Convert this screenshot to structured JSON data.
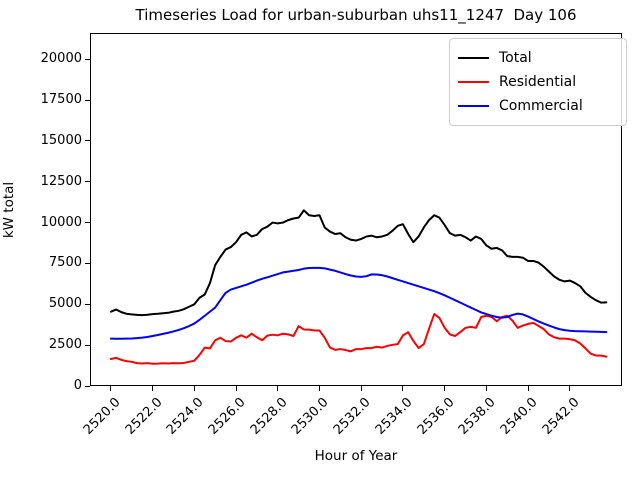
{
  "title": "Timeseries Load for urban-suburban uhs11_1247  Day 106",
  "axes": {
    "xlabel": "Hour of Year",
    "ylabel": "kW total",
    "xticks": [
      {
        "v": 2520,
        "label": "2520.0"
      },
      {
        "v": 2522,
        "label": "2522.0"
      },
      {
        "v": 2524,
        "label": "2524.0"
      },
      {
        "v": 2526,
        "label": "2526.0"
      },
      {
        "v": 2528,
        "label": "2528.0"
      },
      {
        "v": 2530,
        "label": "2530.0"
      },
      {
        "v": 2532,
        "label": "2532.0"
      },
      {
        "v": 2534,
        "label": "2534.0"
      },
      {
        "v": 2536,
        "label": "2536.0"
      },
      {
        "v": 2538,
        "label": "2538.0"
      },
      {
        "v": 2540,
        "label": "2540.0"
      },
      {
        "v": 2542,
        "label": "2542.0"
      }
    ],
    "yticks": [
      {
        "v": 0,
        "label": "0"
      },
      {
        "v": 2500,
        "label": "2500"
      },
      {
        "v": 5000,
        "label": "5000"
      },
      {
        "v": 7500,
        "label": "7500"
      },
      {
        "v": 10000,
        "label": "10000"
      },
      {
        "v": 12500,
        "label": "12500"
      },
      {
        "v": 15000,
        "label": "15000"
      },
      {
        "v": 17500,
        "label": "17500"
      },
      {
        "v": 20000,
        "label": "20000"
      }
    ]
  },
  "legend": {
    "position": "upper right",
    "entries": [
      {
        "label": "Total",
        "color": "#000000"
      },
      {
        "label": "Residential",
        "color": "#ff0000"
      },
      {
        "label": "Commercial",
        "color": "#0000ff"
      }
    ]
  },
  "chart_data": {
    "type": "line",
    "title": "Timeseries Load for urban-suburban uhs11_1247  Day 106",
    "xlabel": "Hour of Year",
    "ylabel": "kW total",
    "xlim": [
      2519.0,
      2544.5
    ],
    "ylim": [
      0,
      21600
    ],
    "grid": false,
    "legend_position": "upper right",
    "x": {
      "start": 2520.0,
      "step": 0.25,
      "count": 96
    },
    "series": [
      {
        "name": "Total",
        "color": "#000000",
        "width": 2,
        "values": [
          4550,
          4680,
          4520,
          4420,
          4380,
          4350,
          4340,
          4360,
          4400,
          4420,
          4450,
          4480,
          4550,
          4600,
          4700,
          4850,
          5000,
          5400,
          5600,
          6300,
          7400,
          7900,
          8350,
          8500,
          8800,
          9250,
          9400,
          9150,
          9250,
          9600,
          9750,
          10000,
          9950,
          10000,
          10150,
          10250,
          10300,
          10750,
          10450,
          10400,
          10450,
          9700,
          9450,
          9300,
          9350,
          9100,
          8950,
          8900,
          9000,
          9150,
          9200,
          9100,
          9150,
          9250,
          9500,
          9800,
          9900,
          9300,
          8800,
          9150,
          9700,
          10150,
          10450,
          10300,
          9850,
          9350,
          9200,
          9250,
          9100,
          8900,
          9150,
          9000,
          8600,
          8400,
          8450,
          8300,
          7950,
          7900,
          7900,
          7850,
          7650,
          7650,
          7550,
          7300,
          7000,
          6700,
          6500,
          6400,
          6450,
          6300,
          6100,
          5700,
          5450,
          5250,
          5100,
          5120
        ]
      },
      {
        "name": "Residential",
        "color": "#ff0000",
        "width": 2,
        "values": [
          1650,
          1720,
          1600,
          1520,
          1480,
          1400,
          1380,
          1400,
          1360,
          1370,
          1390,
          1380,
          1400,
          1390,
          1410,
          1480,
          1550,
          1900,
          2350,
          2300,
          2800,
          2950,
          2750,
          2720,
          2950,
          3100,
          2960,
          3200,
          2980,
          2800,
          3080,
          3140,
          3100,
          3200,
          3160,
          3060,
          3660,
          3460,
          3450,
          3400,
          3400,
          2950,
          2360,
          2210,
          2260,
          2200,
          2120,
          2260,
          2260,
          2320,
          2320,
          2400,
          2350,
          2450,
          2520,
          2560,
          3100,
          3290,
          2760,
          2320,
          2560,
          3500,
          4400,
          4160,
          3560,
          3160,
          3060,
          3300,
          3560,
          3620,
          3560,
          4220,
          4300,
          4220,
          3960,
          4220,
          4300,
          4000,
          3560,
          3700,
          3800,
          3860,
          3680,
          3480,
          3150,
          2980,
          2900,
          2900,
          2870,
          2790,
          2600,
          2300,
          1980,
          1870,
          1860,
          1800
        ]
      },
      {
        "name": "Commercial",
        "color": "#0000ff",
        "width": 2,
        "values": [
          2900,
          2890,
          2890,
          2900,
          2910,
          2930,
          2960,
          3000,
          3060,
          3120,
          3190,
          3260,
          3340,
          3430,
          3540,
          3670,
          3820,
          4050,
          4300,
          4550,
          4800,
          5260,
          5700,
          5900,
          6000,
          6100,
          6200,
          6320,
          6450,
          6560,
          6650,
          6750,
          6850,
          6950,
          7000,
          7050,
          7100,
          7180,
          7220,
          7230,
          7230,
          7200,
          7120,
          7050,
          6950,
          6850,
          6760,
          6700,
          6680,
          6720,
          6830,
          6820,
          6780,
          6700,
          6600,
          6500,
          6400,
          6300,
          6200,
          6100,
          6000,
          5900,
          5800,
          5680,
          5550,
          5400,
          5250,
          5100,
          4950,
          4800,
          4650,
          4500,
          4400,
          4300,
          4220,
          4180,
          4220,
          4350,
          4430,
          4380,
          4250,
          4100,
          3950,
          3820,
          3700,
          3580,
          3480,
          3420,
          3380,
          3360,
          3350,
          3340,
          3330,
          3320,
          3310,
          3300
        ]
      }
    ]
  }
}
